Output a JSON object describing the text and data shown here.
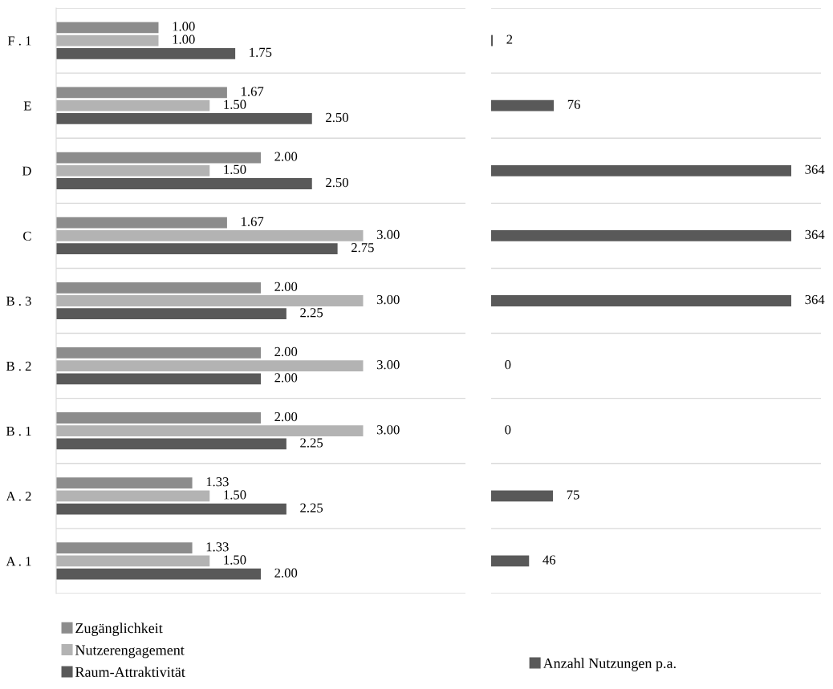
{
  "chart_data": [
    {
      "type": "bar",
      "orientation": "horizontal",
      "categories": [
        "F . 1",
        "E",
        "D",
        "C",
        "B . 3",
        "B . 2",
        "B . 1",
        "A . 2",
        "A . 1"
      ],
      "xlim": [
        0,
        4
      ],
      "tick_labels": "y",
      "grid": "y",
      "legend": "bottom left",
      "series": [
        {
          "name": "Zugänglichkeit",
          "color": "#8c8c8c",
          "values": [
            1.0,
            1.67,
            2.0,
            1.67,
            2.0,
            2.0,
            2.0,
            1.33,
            1.33
          ],
          "value_labels": [
            "1.00",
            "1.67",
            "2.00",
            "1.67",
            "2.00",
            "2.00",
            "2.00",
            "1.33",
            "1.33"
          ]
        },
        {
          "name": "Nutzerengagement",
          "color": "#b3b3b3",
          "values": [
            1.0,
            1.5,
            1.5,
            3.0,
            3.0,
            3.0,
            3.0,
            1.5,
            1.5
          ],
          "value_labels": [
            "1.00",
            "1.50",
            "1.50",
            "3.00",
            "3.00",
            "3.00",
            "3.00",
            "1.50",
            "1.50"
          ]
        },
        {
          "name": "Raum-Attraktivität",
          "color": "#595959",
          "values": [
            1.75,
            2.5,
            2.5,
            2.75,
            2.25,
            2.0,
            2.25,
            2.25,
            2.0
          ],
          "value_labels": [
            "1.75",
            "2.50",
            "2.50",
            "2.75",
            "2.25",
            "2.00",
            "2.25",
            "2.25",
            "2.00"
          ]
        }
      ]
    },
    {
      "type": "bar",
      "orientation": "horizontal",
      "categories": [
        null,
        null,
        null,
        null,
        null,
        null,
        null,
        null,
        null
      ],
      "xlim": [
        0,
        400
      ],
      "tick_labels": false,
      "grid": "y",
      "legend": "bottom",
      "data_labels": true,
      "series": [
        {
          "name": "Anzahl Nutzungen p.a.",
          "color": "#595959",
          "values": [
            2,
            76,
            364,
            364,
            364,
            0,
            0,
            75,
            46
          ]
        }
      ]
    }
  ]
}
